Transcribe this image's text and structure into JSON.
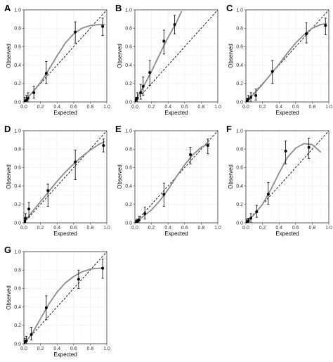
{
  "figure": {
    "xlabel": "Expected",
    "ylabel": "Observed"
  },
  "style": {
    "grid_color": "#ebebeb",
    "point_color": "#000000",
    "curve_color": "#8c8c8c",
    "reference_color": "#000000"
  },
  "chart_data": [
    {
      "label": "A",
      "type": "scatter",
      "xlim": [
        0,
        1
      ],
      "ylim": [
        0,
        1
      ],
      "xticks": [
        "0.0",
        "0.2",
        "0.4",
        "0.6",
        "0.8",
        "1.0"
      ],
      "yticks": [
        "0.0",
        "0.2",
        "0.4",
        "0.6",
        "0.8",
        "1.0"
      ],
      "xlabel": "Expected",
      "ylabel": "Observed",
      "grid": true,
      "points": [
        {
          "x": 0.0,
          "y": 0.0,
          "lo": 0.0,
          "hi": 0.0
        },
        {
          "x": 0.01,
          "y": 0.01,
          "lo": 0.0,
          "hi": 0.05
        },
        {
          "x": 0.03,
          "y": 0.02,
          "lo": 0.0,
          "hi": 0.07
        },
        {
          "x": 0.05,
          "y": 0.04,
          "lo": 0.0,
          "hi": 0.1
        },
        {
          "x": 0.12,
          "y": 0.1,
          "lo": 0.04,
          "hi": 0.17
        },
        {
          "x": 0.27,
          "y": 0.31,
          "lo": 0.2,
          "hi": 0.44
        },
        {
          "x": 0.62,
          "y": 0.76,
          "lo": 0.64,
          "hi": 0.87
        },
        {
          "x": 0.95,
          "y": 0.82,
          "lo": 0.72,
          "hi": 0.91
        }
      ],
      "curve": [
        [
          0,
          0
        ],
        [
          0.1,
          0.1
        ],
        [
          0.2,
          0.21
        ],
        [
          0.3,
          0.35
        ],
        [
          0.4,
          0.5
        ],
        [
          0.5,
          0.64
        ],
        [
          0.6,
          0.74
        ],
        [
          0.7,
          0.8
        ],
        [
          0.8,
          0.83
        ],
        [
          0.9,
          0.84
        ],
        [
          0.97,
          0.84
        ]
      ],
      "reference_line": [
        [
          0,
          0
        ],
        [
          1,
          1
        ]
      ]
    },
    {
      "label": "B",
      "type": "scatter",
      "xlim": [
        0,
        1
      ],
      "ylim": [
        0,
        1
      ],
      "xticks": [
        "0.0",
        "0.2",
        "0.4",
        "0.6",
        "0.8",
        "1.0"
      ],
      "yticks": [
        "0.0",
        "0.2",
        "0.4",
        "0.6",
        "0.8",
        "1.0"
      ],
      "xlabel": "Expected",
      "ylabel": "Observed",
      "grid": true,
      "points": [
        {
          "x": 0.0,
          "y": 0.0,
          "lo": 0.0,
          "hi": 0.0
        },
        {
          "x": 0.01,
          "y": 0.02,
          "lo": 0.0,
          "hi": 0.05
        },
        {
          "x": 0.03,
          "y": 0.04,
          "lo": 0.0,
          "hi": 0.1
        },
        {
          "x": 0.07,
          "y": 0.1,
          "lo": 0.03,
          "hi": 0.19
        },
        {
          "x": 0.1,
          "y": 0.17,
          "lo": 0.07,
          "hi": 0.27
        },
        {
          "x": 0.18,
          "y": 0.32,
          "lo": 0.18,
          "hi": 0.45
        },
        {
          "x": 0.35,
          "y": 0.66,
          "lo": 0.52,
          "hi": 0.78
        },
        {
          "x": 0.48,
          "y": 0.84,
          "lo": 0.74,
          "hi": 0.94
        }
      ],
      "curve": [
        [
          0,
          0
        ],
        [
          0.1,
          0.16
        ],
        [
          0.2,
          0.33
        ],
        [
          0.3,
          0.52
        ],
        [
          0.4,
          0.7
        ],
        [
          0.5,
          0.86
        ],
        [
          0.56,
          0.98
        ]
      ],
      "reference_line": [
        [
          0,
          0
        ],
        [
          1,
          1
        ]
      ]
    },
    {
      "label": "C",
      "type": "scatter",
      "xlim": [
        0,
        1
      ],
      "ylim": [
        0,
        1
      ],
      "xticks": [
        "0.0",
        "0.2",
        "0.4",
        "0.6",
        "0.8",
        "1.0"
      ],
      "yticks": [
        "0.0",
        "0.2",
        "0.4",
        "0.6",
        "0.8",
        "1.0"
      ],
      "xlabel": "Expected",
      "ylabel": "Observed",
      "grid": true,
      "points": [
        {
          "x": 0.0,
          "y": 0.0,
          "lo": 0.0,
          "hi": 0.0
        },
        {
          "x": 0.01,
          "y": 0.01,
          "lo": 0.0,
          "hi": 0.04
        },
        {
          "x": 0.03,
          "y": 0.03,
          "lo": 0.0,
          "hi": 0.07
        },
        {
          "x": 0.06,
          "y": 0.05,
          "lo": 0.0,
          "hi": 0.1
        },
        {
          "x": 0.12,
          "y": 0.07,
          "lo": 0.02,
          "hi": 0.14
        },
        {
          "x": 0.32,
          "y": 0.33,
          "lo": 0.2,
          "hi": 0.45
        },
        {
          "x": 0.73,
          "y": 0.74,
          "lo": 0.64,
          "hi": 0.86
        },
        {
          "x": 0.96,
          "y": 0.83,
          "lo": 0.73,
          "hi": 0.91
        }
      ],
      "curve": [
        [
          0,
          0
        ],
        [
          0.1,
          0.09
        ],
        [
          0.2,
          0.19
        ],
        [
          0.3,
          0.3
        ],
        [
          0.4,
          0.41
        ],
        [
          0.5,
          0.53
        ],
        [
          0.6,
          0.64
        ],
        [
          0.7,
          0.73
        ],
        [
          0.8,
          0.8
        ],
        [
          0.9,
          0.84
        ],
        [
          0.97,
          0.85
        ]
      ],
      "reference_line": [
        [
          0,
          0
        ],
        [
          1,
          1
        ]
      ]
    },
    {
      "label": "D",
      "type": "scatter",
      "xlim": [
        0,
        1
      ],
      "ylim": [
        0,
        1
      ],
      "xticks": [
        "0.0",
        "0.2",
        "0.4",
        "0.6",
        "0.8",
        "1.0"
      ],
      "yticks": [
        "0.0",
        "0.2",
        "0.4",
        "0.6",
        "0.8",
        "1.0"
      ],
      "xlabel": "Expected",
      "ylabel": "Observed",
      "grid": true,
      "points": [
        {
          "x": 0.0,
          "y": 0.0,
          "lo": 0.0,
          "hi": 0.0
        },
        {
          "x": 0.01,
          "y": 0.02,
          "lo": 0.0,
          "hi": 0.05
        },
        {
          "x": 0.02,
          "y": 0.05,
          "lo": 0.0,
          "hi": 0.1
        },
        {
          "x": 0.06,
          "y": 0.15,
          "lo": 0.06,
          "hi": 0.22
        },
        {
          "x": 0.29,
          "y": 0.35,
          "lo": 0.18,
          "hi": 0.42
        },
        {
          "x": 0.62,
          "y": 0.66,
          "lo": 0.47,
          "hi": 0.79
        },
        {
          "x": 0.96,
          "y": 0.84,
          "lo": 0.77,
          "hi": 0.91
        }
      ],
      "curve": [
        [
          0,
          0
        ],
        [
          0.1,
          0.12
        ],
        [
          0.2,
          0.23
        ],
        [
          0.3,
          0.34
        ],
        [
          0.4,
          0.45
        ],
        [
          0.5,
          0.55
        ],
        [
          0.6,
          0.64
        ],
        [
          0.7,
          0.72
        ],
        [
          0.8,
          0.79
        ],
        [
          0.9,
          0.85
        ],
        [
          0.97,
          0.88
        ]
      ],
      "reference_line": [
        [
          0,
          0
        ],
        [
          1,
          1
        ]
      ]
    },
    {
      "label": "E",
      "type": "scatter",
      "xlim": [
        0,
        1
      ],
      "ylim": [
        0,
        1
      ],
      "xticks": [
        "0.0",
        "0.2",
        "0.4",
        "0.6",
        "0.8",
        "1.0"
      ],
      "yticks": [
        "0.0",
        "0.2",
        "0.4",
        "0.6",
        "0.8",
        "1.0"
      ],
      "xlabel": "Expected",
      "ylabel": "Observed",
      "grid": true,
      "points": [
        {
          "x": 0.0,
          "y": 0.0,
          "lo": 0.0,
          "hi": 0.0
        },
        {
          "x": 0.01,
          "y": 0.0,
          "lo": 0.0,
          "hi": 0.03
        },
        {
          "x": 0.03,
          "y": 0.02,
          "lo": 0.0,
          "hi": 0.04
        },
        {
          "x": 0.05,
          "y": 0.03,
          "lo": 0.0,
          "hi": 0.07
        },
        {
          "x": 0.12,
          "y": 0.1,
          "lo": 0.04,
          "hi": 0.17
        },
        {
          "x": 0.35,
          "y": 0.31,
          "lo": 0.18,
          "hi": 0.43
        },
        {
          "x": 0.67,
          "y": 0.74,
          "lo": 0.64,
          "hi": 0.82
        },
        {
          "x": 0.88,
          "y": 0.84,
          "lo": 0.75,
          "hi": 0.91
        }
      ],
      "curve": [
        [
          0,
          0
        ],
        [
          0.1,
          0.07
        ],
        [
          0.2,
          0.14
        ],
        [
          0.3,
          0.24
        ],
        [
          0.4,
          0.36
        ],
        [
          0.5,
          0.5
        ],
        [
          0.6,
          0.63
        ],
        [
          0.7,
          0.74
        ],
        [
          0.8,
          0.82
        ],
        [
          0.9,
          0.86
        ]
      ],
      "reference_line": [
        [
          0,
          0
        ],
        [
          1,
          1
        ]
      ]
    },
    {
      "label": "F",
      "type": "scatter",
      "xlim": [
        0,
        1
      ],
      "ylim": [
        0,
        1
      ],
      "xticks": [
        "0.0",
        "0.2",
        "0.4",
        "0.6",
        "0.8",
        "1.0"
      ],
      "yticks": [
        "0.0",
        "0.2",
        "0.4",
        "0.6",
        "0.8",
        "1.0"
      ],
      "xlabel": "Expected",
      "ylabel": "Observed",
      "grid": true,
      "points": [
        {
          "x": 0.0,
          "y": 0.0,
          "lo": 0.0,
          "hi": 0.0
        },
        {
          "x": 0.01,
          "y": 0.01,
          "lo": 0.0,
          "hi": 0.04
        },
        {
          "x": 0.03,
          "y": 0.02,
          "lo": 0.0,
          "hi": 0.05
        },
        {
          "x": 0.06,
          "y": 0.05,
          "lo": 0.0,
          "hi": 0.1
        },
        {
          "x": 0.13,
          "y": 0.12,
          "lo": 0.06,
          "hi": 0.19
        },
        {
          "x": 0.27,
          "y": 0.31,
          "lo": 0.2,
          "hi": 0.44
        },
        {
          "x": 0.48,
          "y": 0.78,
          "lo": 0.64,
          "hi": 0.89
        },
        {
          "x": 0.76,
          "y": 0.82,
          "lo": 0.7,
          "hi": 0.92
        }
      ],
      "curve": [
        [
          0,
          0
        ],
        [
          0.1,
          0.09
        ],
        [
          0.2,
          0.2
        ],
        [
          0.3,
          0.36
        ],
        [
          0.4,
          0.54
        ],
        [
          0.5,
          0.71
        ],
        [
          0.6,
          0.81
        ],
        [
          0.7,
          0.86
        ],
        [
          0.8,
          0.85
        ],
        [
          0.9,
          0.77
        ]
      ],
      "reference_line": [
        [
          0,
          0
        ],
        [
          1,
          1
        ]
      ]
    },
    {
      "label": "G",
      "type": "scatter",
      "xlim": [
        0,
        1
      ],
      "ylim": [
        0,
        1
      ],
      "xticks": [
        "0.0",
        "0.2",
        "0.4",
        "0.6",
        "0.8",
        "1.0"
      ],
      "yticks": [
        "0.0",
        "0.2",
        "0.4",
        "0.6",
        "0.8",
        "1.0"
      ],
      "xlabel": "Expected",
      "ylabel": "Observed",
      "grid": true,
      "points": [
        {
          "x": 0.0,
          "y": 0.0,
          "lo": 0.0,
          "hi": 0.0
        },
        {
          "x": 0.01,
          "y": 0.02,
          "lo": 0.0,
          "hi": 0.06
        },
        {
          "x": 0.03,
          "y": 0.03,
          "lo": 0.0,
          "hi": 0.08
        },
        {
          "x": 0.09,
          "y": 0.1,
          "lo": 0.04,
          "hi": 0.18
        },
        {
          "x": 0.27,
          "y": 0.39,
          "lo": 0.26,
          "hi": 0.52
        },
        {
          "x": 0.66,
          "y": 0.7,
          "lo": 0.6,
          "hi": 0.8
        },
        {
          "x": 0.95,
          "y": 0.82,
          "lo": 0.71,
          "hi": 0.92
        }
      ],
      "curve": [
        [
          0,
          0
        ],
        [
          0.1,
          0.11
        ],
        [
          0.2,
          0.27
        ],
        [
          0.3,
          0.43
        ],
        [
          0.4,
          0.56
        ],
        [
          0.5,
          0.66
        ],
        [
          0.6,
          0.73
        ],
        [
          0.7,
          0.78
        ],
        [
          0.8,
          0.81
        ],
        [
          0.9,
          0.82
        ],
        [
          0.96,
          0.82
        ]
      ],
      "reference_line": [
        [
          0,
          0
        ],
        [
          1,
          1
        ]
      ]
    }
  ]
}
